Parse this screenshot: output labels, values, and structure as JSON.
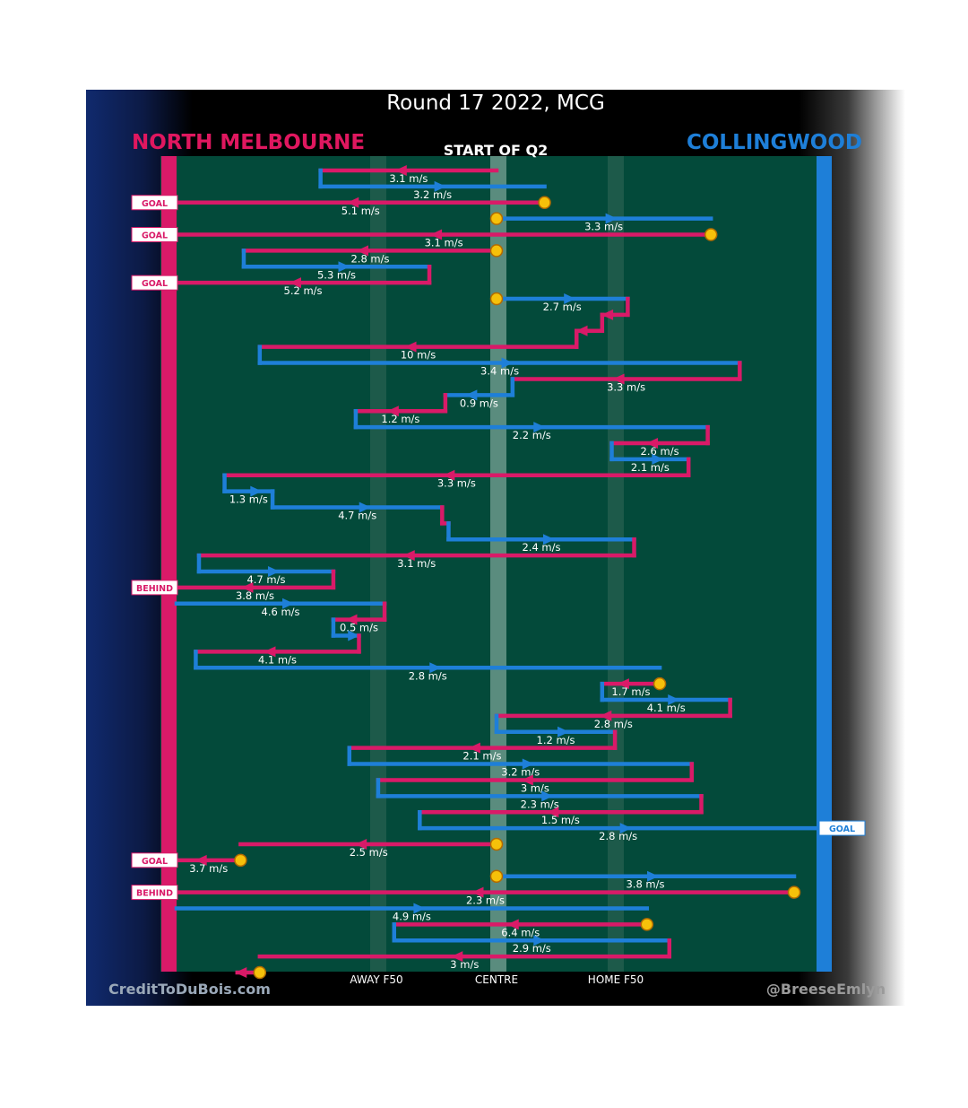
{
  "header": {
    "title": "Round 17 2022, MCG",
    "team_left": "NORTH MELBOURNE",
    "team_right": "COLLINGWOOD",
    "quarter": "START OF Q2"
  },
  "footer": {
    "credit_left": "CreditToDuBois.com",
    "credit_right": "@BreeseEmlyn"
  },
  "colors": {
    "north": "#d91a68",
    "collingwood": "#1e7fd8",
    "field": "#034a3a",
    "stoppage": "#f6c10a"
  },
  "chart_data": {
    "type": "line",
    "title": "Round 17 2022, MCG",
    "subtitle": "START OF Q2",
    "x_ticks": [
      "AWAY F50",
      "CENTRE",
      "HOME F50"
    ],
    "x_range": [
      "North Melbourne goal line",
      "Collingwood goal line"
    ],
    "series_names": [
      "NORTH MELBOURNE",
      "COLLINGWOOD"
    ],
    "legs": [
      {
        "team": "N",
        "from": 0.0,
        "to": -0.55,
        "speed": "3.1 m/s"
      },
      {
        "team": "C",
        "from": -0.55,
        "to": 0.15,
        "speed": "3.2 m/s"
      },
      {
        "team": "N",
        "from": 0.15,
        "to": -1.0,
        "speed": "5.1 m/s",
        "result": "GOAL",
        "stop_start": true
      },
      {
        "team": "C",
        "from": 0.0,
        "to": 0.67,
        "speed": "3.3 m/s",
        "stop_start": true
      },
      {
        "team": "N",
        "from": 0.67,
        "to": -1.0,
        "speed": "3.1 m/s",
        "result": "GOAL",
        "stop_start": true
      },
      {
        "team": "N",
        "from": 0.0,
        "to": -0.79,
        "speed": "2.8 m/s",
        "stop_start": true
      },
      {
        "team": "C",
        "from": -0.79,
        "to": -0.21,
        "speed": "5.3 m/s"
      },
      {
        "team": "N",
        "from": -0.21,
        "to": -1.0,
        "speed": "5.2 m/s",
        "result": "GOAL"
      },
      {
        "team": "C",
        "from": 0.0,
        "to": 0.41,
        "speed": "2.7 m/s",
        "stop_start": true
      },
      {
        "team": "N",
        "from": 0.41,
        "to": 0.33,
        "speed": ""
      },
      {
        "team": "N",
        "from": 0.33,
        "to": 0.25,
        "speed": ""
      },
      {
        "team": "N",
        "from": 0.25,
        "to": -0.74,
        "speed": "10 m/s"
      },
      {
        "team": "C",
        "from": -0.74,
        "to": 0.76,
        "speed": "3.4 m/s"
      },
      {
        "team": "N",
        "from": 0.76,
        "to": 0.05,
        "speed": "3.3 m/s"
      },
      {
        "team": "C",
        "from": 0.05,
        "to": -0.16,
        "speed": "0.9 m/s"
      },
      {
        "team": "N",
        "from": -0.16,
        "to": -0.44,
        "speed": "1.2 m/s"
      },
      {
        "team": "C",
        "from": -0.44,
        "to": 0.66,
        "speed": "2.2 m/s"
      },
      {
        "team": "N",
        "from": 0.66,
        "to": 0.36,
        "speed": "2.6 m/s"
      },
      {
        "team": "C",
        "from": 0.36,
        "to": 0.6,
        "speed": "2.1 m/s"
      },
      {
        "team": "N",
        "from": 0.6,
        "to": -0.85,
        "speed": "3.3 m/s"
      },
      {
        "team": "C",
        "from": -0.85,
        "to": -0.7,
        "speed": "1.3 m/s"
      },
      {
        "team": "C",
        "from": -0.7,
        "to": -0.17,
        "speed": "4.7 m/s"
      },
      {
        "team": "N",
        "from": -0.17,
        "to": -0.15,
        "speed": ""
      },
      {
        "team": "C",
        "from": -0.15,
        "to": 0.43,
        "speed": "2.4 m/s"
      },
      {
        "team": "N",
        "from": 0.43,
        "to": -0.93,
        "speed": "3.1 m/s"
      },
      {
        "team": "C",
        "from": -0.93,
        "to": -0.51,
        "speed": "4.7 m/s"
      },
      {
        "team": "N",
        "from": -0.51,
        "to": -1.0,
        "speed": "3.8 m/s",
        "result": "BEHIND"
      },
      {
        "team": "C",
        "from": -1.0,
        "to": -0.35,
        "speed": "4.6 m/s"
      },
      {
        "team": "N",
        "from": -0.35,
        "to": -0.51,
        "speed": "0.5 m/s"
      },
      {
        "team": "C",
        "from": -0.51,
        "to": -0.43,
        "speed": ""
      },
      {
        "team": "N",
        "from": -0.43,
        "to": -0.94,
        "speed": "4.1 m/s"
      },
      {
        "team": "C",
        "from": -0.94,
        "to": 0.51,
        "speed": "2.8 m/s"
      },
      {
        "team": "N",
        "from": 0.51,
        "to": 0.33,
        "speed": "1.7 m/s",
        "stop_start": true
      },
      {
        "team": "C",
        "from": 0.33,
        "to": 0.73,
        "speed": "4.1 m/s"
      },
      {
        "team": "N",
        "from": 0.73,
        "to": 0.0,
        "speed": "2.8 m/s"
      },
      {
        "team": "C",
        "from": 0.0,
        "to": 0.37,
        "speed": "1.2 m/s"
      },
      {
        "team": "N",
        "from": 0.37,
        "to": -0.46,
        "speed": "2.1 m/s"
      },
      {
        "team": "C",
        "from": -0.46,
        "to": 0.61,
        "speed": "3.2 m/s"
      },
      {
        "team": "N",
        "from": 0.61,
        "to": -0.37,
        "speed": "3 m/s"
      },
      {
        "team": "C",
        "from": -0.37,
        "to": 0.64,
        "speed": "2.3 m/s"
      },
      {
        "team": "N",
        "from": 0.64,
        "to": -0.24,
        "speed": "1.5 m/s"
      },
      {
        "team": "C",
        "from": -0.24,
        "to": 1.0,
        "speed": "2.8 m/s",
        "result": "GOAL"
      },
      {
        "team": "N",
        "from": 0.0,
        "to": -0.8,
        "speed": "2.5 m/s",
        "stop_start": true
      },
      {
        "team": "N",
        "from": -0.8,
        "to": -1.0,
        "speed": "3.7 m/s",
        "result": "GOAL",
        "stop_start": true
      },
      {
        "team": "C",
        "from": 0.0,
        "to": 0.93,
        "speed": "3.8 m/s",
        "stop_start": true
      },
      {
        "team": "N",
        "from": 0.93,
        "to": -1.0,
        "speed": "2.3 m/s",
        "result": "BEHIND",
        "stop_start": true
      },
      {
        "team": "C",
        "from": -1.0,
        "to": 0.47,
        "speed": "4.9 m/s"
      },
      {
        "team": "N",
        "from": 0.47,
        "to": -0.32,
        "speed": "6.4 m/s",
        "stop_start": true
      },
      {
        "team": "C",
        "from": -0.32,
        "to": 0.54,
        "speed": "2.9 m/s"
      },
      {
        "team": "N",
        "from": 0.54,
        "to": -0.74,
        "speed": "3 m/s"
      },
      {
        "team": "N",
        "from": -0.74,
        "to": -0.81,
        "speed": "",
        "stop_start": true
      }
    ]
  }
}
